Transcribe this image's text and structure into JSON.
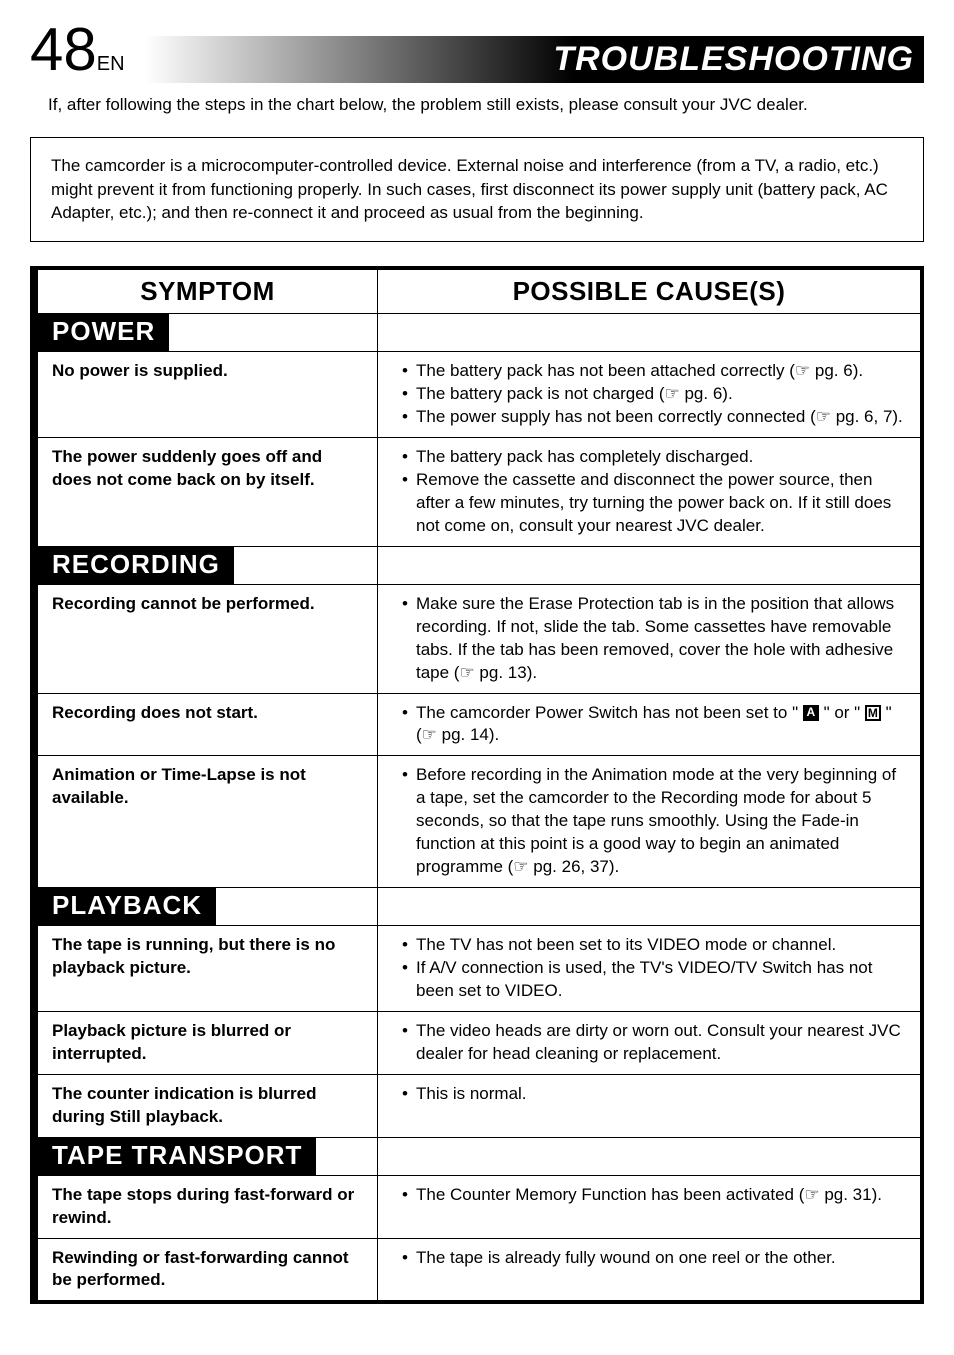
{
  "header": {
    "page_number": "48",
    "page_suffix": "EN",
    "title": "TROUBLESHOOTING"
  },
  "intro": "If, after following the steps in the chart below, the problem still exists, please consult your JVC dealer.",
  "note": "The camcorder is a microcomputer-controlled device. External noise and interference (from a TV, a radio, etc.) might prevent it from functioning properly. In such cases, first disconnect its power supply unit (battery pack, AC Adapter, etc.); and then re-connect it and proceed as usual from the beginning.",
  "columns": {
    "symptom": "SYMPTOM",
    "causes": "POSSIBLE CAUSE(S)"
  },
  "ref_glyph": "☞",
  "sections": [
    {
      "heading": "POWER",
      "items": [
        {
          "symptom": "No power is supplied.",
          "causes": [
            "The battery pack has not been attached correctly (☞ pg. 6).",
            "The battery pack is not charged (☞ pg. 6).",
            "The power supply has not been correctly connected (☞ pg. 6, 7)."
          ]
        },
        {
          "symptom": "The power suddenly goes off and does not come back on by itself.",
          "causes": [
            "The battery pack has completely discharged.",
            "Remove the cassette and disconnect the power source, then after a few minutes, try turning the power back on. If it still does not come on, consult your nearest JVC dealer."
          ]
        }
      ]
    },
    {
      "heading": "RECORDING",
      "items": [
        {
          "symptom": "Recording cannot be performed.",
          "causes": [
            "Make sure the Erase Protection tab is in the position that allows recording. If not, slide the tab. Some cassettes have removable tabs. If the tab has been removed, cover the hole with adhesive tape (☞ pg. 13)."
          ]
        },
        {
          "symptom": "Recording does not start.",
          "causes_html": true,
          "causes": [
            "The camcorder Power Switch has not been set to \" <span class=\"mode-box-filled\" data-name=\"mode-a-icon\" data-interactable=\"false\">A</span> \" or \" <span class=\"mode-box\" data-name=\"mode-m-icon\" data-interactable=\"false\">M</span> \" (☞ pg. 14)."
          ]
        },
        {
          "symptom": "Animation or Time-Lapse is not available.",
          "causes": [
            "Before recording in the Animation mode at the very beginning of a tape, set the camcorder to the Recording mode for about 5 seconds, so that the tape runs smoothly. Using the Fade-in function at this point is a good way to begin an animated programme (☞ pg. 26, 37)."
          ]
        }
      ]
    },
    {
      "heading": "PLAYBACK",
      "items": [
        {
          "symptom": "The tape is running, but there is no playback picture.",
          "causes": [
            "The TV has not been set to its VIDEO mode or channel.",
            "If A/V connection is used, the TV's VIDEO/TV Switch has not been set to VIDEO."
          ]
        },
        {
          "symptom": "Playback picture is blurred or interrupted.",
          "causes": [
            "The video heads are dirty or worn out. Consult your nearest JVC dealer for head cleaning or replacement."
          ]
        },
        {
          "symptom": "The counter indication is blurred during Still playback.",
          "causes": [
            "This is normal."
          ]
        }
      ]
    },
    {
      "heading": "TAPE TRANSPORT",
      "items": [
        {
          "symptom": "The tape stops during fast-forward or rewind.",
          "causes": [
            "The Counter Memory Function has been activated (☞ pg. 31)."
          ]
        },
        {
          "symptom": "Rewinding or fast-forwarding cannot be performed.",
          "causes": [
            "The tape is already fully wound on one reel or the other."
          ]
        }
      ]
    }
  ]
}
